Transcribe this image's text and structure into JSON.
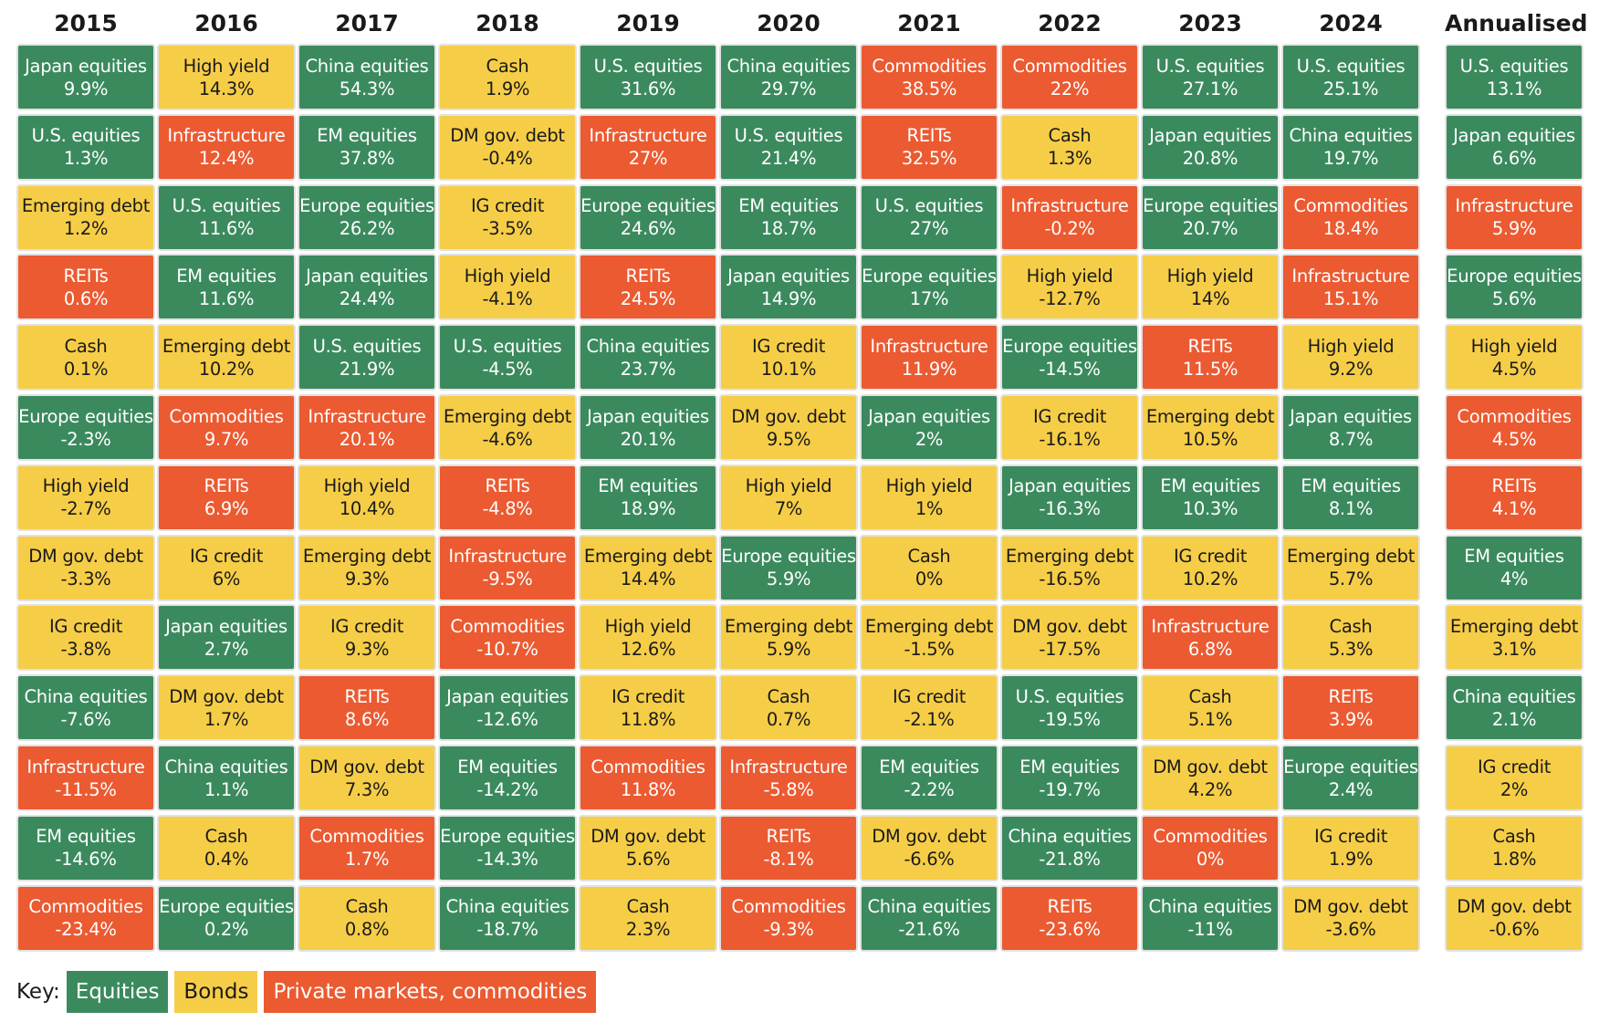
{
  "columns": [
    {
      "header": "2015",
      "cells": [
        {
          "name": "Japan equities",
          "value": "9.9%",
          "color": "#3b8a5e"
        },
        {
          "name": "U.S. equities",
          "value": "1.3%",
          "color": "#3b8a5e"
        },
        {
          "name": "Emerging debt",
          "value": "1.2%",
          "color": "#f6cd47"
        },
        {
          "name": "REITs",
          "value": "0.6%",
          "color": "#eb5a31"
        },
        {
          "name": "Cash",
          "value": "0.1%",
          "color": "#f6cd47"
        },
        {
          "name": "Europe equities",
          "value": "-2.3%",
          "color": "#3b8a5e"
        },
        {
          "name": "High yield",
          "value": "-2.7%",
          "color": "#f6cd47"
        },
        {
          "name": "DM gov. debt",
          "value": "-3.3%",
          "color": "#f6cd47"
        },
        {
          "name": "IG credit",
          "value": "-3.8%",
          "color": "#f6cd47"
        },
        {
          "name": "China equities",
          "value": "-7.6%",
          "color": "#3b8a5e"
        },
        {
          "name": "Infrastructure",
          "value": "-11.5%",
          "color": "#eb5a31"
        },
        {
          "name": "EM equities",
          "value": "-14.6%",
          "color": "#3b8a5e"
        },
        {
          "name": "Commodities",
          "value": "-23.4%",
          "color": "#eb5a31"
        }
      ]
    },
    {
      "header": "2016",
      "cells": [
        {
          "name": "High yield",
          "value": "14.3%",
          "color": "#f6cd47"
        },
        {
          "name": "Infrastructure",
          "value": "12.4%",
          "color": "#eb5a31"
        },
        {
          "name": "U.S. equities",
          "value": "11.6%",
          "color": "#3b8a5e"
        },
        {
          "name": "EM equities",
          "value": "11.6%",
          "color": "#3b8a5e"
        },
        {
          "name": "Emerging debt",
          "value": "10.2%",
          "color": "#f6cd47"
        },
        {
          "name": "Commodities",
          "value": "9.7%",
          "color": "#eb5a31"
        },
        {
          "name": "REITs",
          "value": "6.9%",
          "color": "#eb5a31"
        },
        {
          "name": "IG credit",
          "value": "6%",
          "color": "#f6cd47"
        },
        {
          "name": "Japan equities",
          "value": "2.7%",
          "color": "#3b8a5e"
        },
        {
          "name": "DM gov. debt",
          "value": "1.7%",
          "color": "#f6cd47"
        },
        {
          "name": "China equities",
          "value": "1.1%",
          "color": "#3b8a5e"
        },
        {
          "name": "Cash",
          "value": "0.4%",
          "color": "#f6cd47"
        },
        {
          "name": "Europe equities",
          "value": "0.2%",
          "color": "#3b8a5e"
        }
      ]
    },
    {
      "header": "2017",
      "cells": [
        {
          "name": "China equities",
          "value": "54.3%",
          "color": "#3b8a5e"
        },
        {
          "name": "EM equities",
          "value": "37.8%",
          "color": "#3b8a5e"
        },
        {
          "name": "Europe equities",
          "value": "26.2%",
          "color": "#3b8a5e"
        },
        {
          "name": "Japan equities",
          "value": "24.4%",
          "color": "#3b8a5e"
        },
        {
          "name": "U.S. equities",
          "value": "21.9%",
          "color": "#3b8a5e"
        },
        {
          "name": "Infrastructure",
          "value": "20.1%",
          "color": "#eb5a31"
        },
        {
          "name": "High yield",
          "value": "10.4%",
          "color": "#f6cd47"
        },
        {
          "name": "Emerging debt",
          "value": "9.3%",
          "color": "#f6cd47"
        },
        {
          "name": "IG credit",
          "value": "9.3%",
          "color": "#f6cd47"
        },
        {
          "name": "REITs",
          "value": "8.6%",
          "color": "#eb5a31"
        },
        {
          "name": "DM gov. debt",
          "value": "7.3%",
          "color": "#f6cd47"
        },
        {
          "name": "Commodities",
          "value": "1.7%",
          "color": "#eb5a31"
        },
        {
          "name": "Cash",
          "value": "0.8%",
          "color": "#f6cd47"
        }
      ]
    },
    {
      "header": "2018",
      "cells": [
        {
          "name": "Cash",
          "value": "1.9%",
          "color": "#f6cd47"
        },
        {
          "name": "DM gov. debt",
          "value": "-0.4%",
          "color": "#f6cd47"
        },
        {
          "name": "IG credit",
          "value": "-3.5%",
          "color": "#f6cd47"
        },
        {
          "name": "High yield",
          "value": "-4.1%",
          "color": "#f6cd47"
        },
        {
          "name": "U.S. equities",
          "value": "-4.5%",
          "color": "#3b8a5e"
        },
        {
          "name": "Emerging debt",
          "value": "-4.6%",
          "color": "#f6cd47"
        },
        {
          "name": "REITs",
          "value": "-4.8%",
          "color": "#eb5a31"
        },
        {
          "name": "Infrastructure",
          "value": "-9.5%",
          "color": "#eb5a31"
        },
        {
          "name": "Commodities",
          "value": "-10.7%",
          "color": "#eb5a31"
        },
        {
          "name": "Japan equities",
          "value": "-12.6%",
          "color": "#3b8a5e"
        },
        {
          "name": "EM equities",
          "value": "-14.2%",
          "color": "#3b8a5e"
        },
        {
          "name": "Europe equities",
          "value": "-14.3%",
          "color": "#3b8a5e"
        },
        {
          "name": "China equities",
          "value": "-18.7%",
          "color": "#3b8a5e"
        }
      ]
    },
    {
      "header": "2019",
      "cells": [
        {
          "name": "U.S. equities",
          "value": "31.6%",
          "color": "#3b8a5e"
        },
        {
          "name": "Infrastructure",
          "value": "27%",
          "color": "#eb5a31"
        },
        {
          "name": "Europe equities",
          "value": "24.6%",
          "color": "#3b8a5e"
        },
        {
          "name": "REITs",
          "value": "24.5%",
          "color": "#eb5a31"
        },
        {
          "name": "China equities",
          "value": "23.7%",
          "color": "#3b8a5e"
        },
        {
          "name": "Japan equities",
          "value": "20.1%",
          "color": "#3b8a5e"
        },
        {
          "name": "EM equities",
          "value": "18.9%",
          "color": "#3b8a5e"
        },
        {
          "name": "Emerging debt",
          "value": "14.4%",
          "color": "#f6cd47"
        },
        {
          "name": "High yield",
          "value": "12.6%",
          "color": "#f6cd47"
        },
        {
          "name": "IG credit",
          "value": "11.8%",
          "color": "#f6cd47"
        },
        {
          "name": "Commodities",
          "value": "11.8%",
          "color": "#eb5a31"
        },
        {
          "name": "DM gov. debt",
          "value": "5.6%",
          "color": "#f6cd47"
        },
        {
          "name": "Cash",
          "value": "2.3%",
          "color": "#f6cd47"
        }
      ]
    },
    {
      "header": "2020",
      "cells": [
        {
          "name": "China equities",
          "value": "29.7%",
          "color": "#3b8a5e"
        },
        {
          "name": "U.S. equities",
          "value": "21.4%",
          "color": "#3b8a5e"
        },
        {
          "name": "EM equities",
          "value": "18.7%",
          "color": "#3b8a5e"
        },
        {
          "name": "Japan equities",
          "value": "14.9%",
          "color": "#3b8a5e"
        },
        {
          "name": "IG credit",
          "value": "10.1%",
          "color": "#f6cd47"
        },
        {
          "name": "DM gov. debt",
          "value": "9.5%",
          "color": "#f6cd47"
        },
        {
          "name": "High yield",
          "value": "7%",
          "color": "#f6cd47"
        },
        {
          "name": "Europe equities",
          "value": "5.9%",
          "color": "#3b8a5e"
        },
        {
          "name": "Emerging debt",
          "value": "5.9%",
          "color": "#f6cd47"
        },
        {
          "name": "Cash",
          "value": "0.7%",
          "color": "#f6cd47"
        },
        {
          "name": "Infrastructure",
          "value": "-5.8%",
          "color": "#eb5a31"
        },
        {
          "name": "REITs",
          "value": "-8.1%",
          "color": "#eb5a31"
        },
        {
          "name": "Commodities",
          "value": "-9.3%",
          "color": "#eb5a31"
        }
      ]
    },
    {
      "header": "2021",
      "cells": [
        {
          "name": "Commodities",
          "value": "38.5%",
          "color": "#eb5a31"
        },
        {
          "name": "REITs",
          "value": "32.5%",
          "color": "#eb5a31"
        },
        {
          "name": "U.S. equities",
          "value": "27%",
          "color": "#3b8a5e"
        },
        {
          "name": "Europe equities",
          "value": "17%",
          "color": "#3b8a5e"
        },
        {
          "name": "Infrastructure",
          "value": "11.9%",
          "color": "#eb5a31"
        },
        {
          "name": "Japan equities",
          "value": "2%",
          "color": "#3b8a5e"
        },
        {
          "name": "High yield",
          "value": "1%",
          "color": "#f6cd47"
        },
        {
          "name": "Cash",
          "value": "0%",
          "color": "#f6cd47"
        },
        {
          "name": "Emerging debt",
          "value": "-1.5%",
          "color": "#f6cd47"
        },
        {
          "name": "IG credit",
          "value": "-2.1%",
          "color": "#f6cd47"
        },
        {
          "name": "EM equities",
          "value": "-2.2%",
          "color": "#3b8a5e"
        },
        {
          "name": "DM gov. debt",
          "value": "-6.6%",
          "color": "#f6cd47"
        },
        {
          "name": "China equities",
          "value": "-21.6%",
          "color": "#3b8a5e"
        }
      ]
    },
    {
      "header": "2022",
      "cells": [
        {
          "name": "Commodities",
          "value": "22%",
          "color": "#eb5a31"
        },
        {
          "name": "Cash",
          "value": "1.3%",
          "color": "#f6cd47"
        },
        {
          "name": "Infrastructure",
          "value": "-0.2%",
          "color": "#eb5a31"
        },
        {
          "name": "High yield",
          "value": "-12.7%",
          "color": "#f6cd47"
        },
        {
          "name": "Europe equities",
          "value": "-14.5%",
          "color": "#3b8a5e"
        },
        {
          "name": "IG credit",
          "value": "-16.1%",
          "color": "#f6cd47"
        },
        {
          "name": "Japan equities",
          "value": "-16.3%",
          "color": "#3b8a5e"
        },
        {
          "name": "Emerging debt",
          "value": "-16.5%",
          "color": "#f6cd47"
        },
        {
          "name": "DM gov. debt",
          "value": "-17.5%",
          "color": "#f6cd47"
        },
        {
          "name": "U.S. equities",
          "value": "-19.5%",
          "color": "#3b8a5e"
        },
        {
          "name": "EM equities",
          "value": "-19.7%",
          "color": "#3b8a5e"
        },
        {
          "name": "China equities",
          "value": "-21.8%",
          "color": "#3b8a5e"
        },
        {
          "name": "REITs",
          "value": "-23.6%",
          "color": "#eb5a31"
        }
      ]
    },
    {
      "header": "2023",
      "cells": [
        {
          "name": "U.S. equities",
          "value": "27.1%",
          "color": "#3b8a5e"
        },
        {
          "name": "Japan equities",
          "value": "20.8%",
          "color": "#3b8a5e"
        },
        {
          "name": "Europe equities",
          "value": "20.7%",
          "color": "#3b8a5e"
        },
        {
          "name": "High yield",
          "value": "14%",
          "color": "#f6cd47"
        },
        {
          "name": "REITs",
          "value": "11.5%",
          "color": "#eb5a31"
        },
        {
          "name": "Emerging debt",
          "value": "10.5%",
          "color": "#f6cd47"
        },
        {
          "name": "EM equities",
          "value": "10.3%",
          "color": "#3b8a5e"
        },
        {
          "name": "IG credit",
          "value": "10.2%",
          "color": "#f6cd47"
        },
        {
          "name": "Infrastructure",
          "value": "6.8%",
          "color": "#eb5a31"
        },
        {
          "name": "Cash",
          "value": "5.1%",
          "color": "#f6cd47"
        },
        {
          "name": "DM gov. debt",
          "value": "4.2%",
          "color": "#f6cd47"
        },
        {
          "name": "Commodities",
          "value": "0%",
          "color": "#eb5a31"
        },
        {
          "name": "China equities",
          "value": "-11%",
          "color": "#3b8a5e"
        }
      ]
    },
    {
      "header": "2024",
      "cells": [
        {
          "name": "U.S. equities",
          "value": "25.1%",
          "color": "#3b8a5e"
        },
        {
          "name": "China equities",
          "value": "19.7%",
          "color": "#3b8a5e"
        },
        {
          "name": "Commodities",
          "value": "18.4%",
          "color": "#eb5a31"
        },
        {
          "name": "Infrastructure",
          "value": "15.1%",
          "color": "#eb5a31"
        },
        {
          "name": "High yield",
          "value": "9.2%",
          "color": "#f6cd47"
        },
        {
          "name": "Japan equities",
          "value": "8.7%",
          "color": "#3b8a5e"
        },
        {
          "name": "EM equities",
          "value": "8.1%",
          "color": "#3b8a5e"
        },
        {
          "name": "Emerging debt",
          "value": "5.7%",
          "color": "#f6cd47"
        },
        {
          "name": "Cash",
          "value": "5.3%",
          "color": "#f6cd47"
        },
        {
          "name": "REITs",
          "value": "3.9%",
          "color": "#eb5a31"
        },
        {
          "name": "Europe equities",
          "value": "2.4%",
          "color": "#3b8a5e"
        },
        {
          "name": "IG credit",
          "value": "1.9%",
          "color": "#f6cd47"
        },
        {
          "name": "DM gov. debt",
          "value": "-3.6%",
          "color": "#f6cd47"
        }
      ]
    },
    {
      "header": "Annualised",
      "cells": [
        {
          "name": "U.S. equities",
          "value": "13.1%",
          "color": "#3b8a5e"
        },
        {
          "name": "Japan equities",
          "value": "6.6%",
          "color": "#3b8a5e"
        },
        {
          "name": "Infrastructure",
          "value": "5.9%",
          "color": "#eb5a31"
        },
        {
          "name": "Europe equities",
          "value": "5.6%",
          "color": "#3b8a5e"
        },
        {
          "name": "High yield",
          "value": "4.5%",
          "color": "#f6cd47"
        },
        {
          "name": "Commodities",
          "value": "4.5%",
          "color": "#eb5a31"
        },
        {
          "name": "REITs",
          "value": "4.1%",
          "color": "#eb5a31"
        },
        {
          "name": "EM equities",
          "value": "4%",
          "color": "#3b8a5e"
        },
        {
          "name": "Emerging debt",
          "value": "3.1%",
          "color": "#f6cd47"
        },
        {
          "name": "China equities",
          "value": "2.1%",
          "color": "#3b8a5e"
        },
        {
          "name": "IG credit",
          "value": "2%",
          "color": "#f6cd47"
        },
        {
          "name": "Cash",
          "value": "1.8%",
          "color": "#f6cd47"
        },
        {
          "name": "DM gov. debt",
          "value": "-0.6%",
          "color": "#f6cd47"
        }
      ]
    }
  ],
  "key": {
    "label": "Key:",
    "items": [
      {
        "label": "Equities",
        "color": "#3b8a5e"
      },
      {
        "label": "Bonds",
        "color": "#f6cd47"
      },
      {
        "label": "Private markets, commodities",
        "color": "#eb5a31"
      }
    ]
  }
}
